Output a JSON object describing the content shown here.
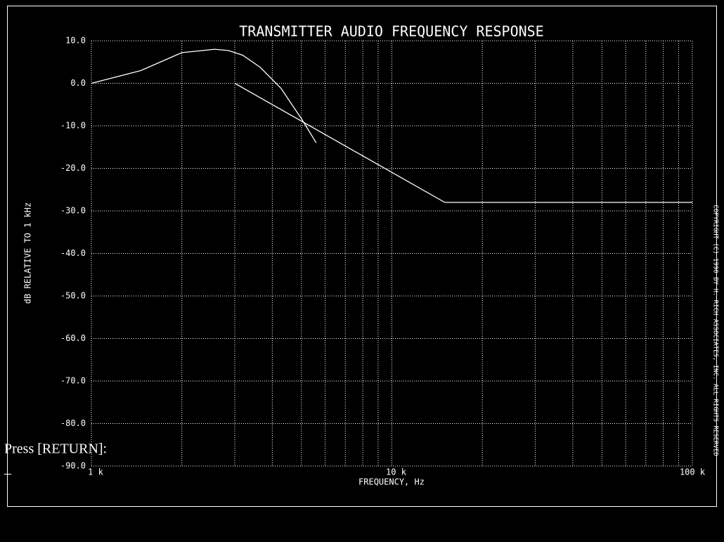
{
  "chart_data": {
    "type": "line",
    "title": "TRANSMITTER AUDIO FREQUENCY RESPONSE",
    "x_label": "FREQUENCY, Hz",
    "y_label": "dB RELATIVE TO 1 kHz",
    "log_x": true,
    "grid": true,
    "xlim": [
      1000,
      100000
    ],
    "xticks": [
      {
        "value": 1000,
        "label": "1 k"
      },
      {
        "value": 10000,
        "label": "10 k"
      },
      {
        "value": 100000,
        "label": "100 k"
      }
    ],
    "minor_xticks": [
      2000,
      3000,
      4000,
      5000,
      6000,
      7000,
      8000,
      9000,
      20000,
      30000,
      40000,
      50000,
      60000,
      70000,
      80000,
      90000
    ],
    "ylim": [
      -90,
      10
    ],
    "yticks": [
      {
        "value": 10,
        "label": "10.0"
      },
      {
        "value": 0,
        "label": "0.0"
      },
      {
        "value": -10,
        "label": "-10.0"
      },
      {
        "value": -20,
        "label": "-20.0"
      },
      {
        "value": -30,
        "label": "-30.0"
      },
      {
        "value": -40,
        "label": "-40.0"
      },
      {
        "value": -50,
        "label": "-50.0"
      },
      {
        "value": -60,
        "label": "-60.0"
      },
      {
        "value": -70,
        "label": "-70.0"
      },
      {
        "value": -80,
        "label": "-80.0"
      },
      {
        "value": -90,
        "label": "-90.0"
      }
    ],
    "series": [
      {
        "color": "#ffffff",
        "x": [
          1000,
          1460,
          2000,
          2570,
          2860,
          3190,
          3640,
          4280,
          5030,
          5600
        ],
        "values": [
          0,
          3,
          7.2,
          8,
          7.7,
          6.6,
          3.8,
          -1.2,
          -8.6,
          -14
        ]
      },
      {
        "color": "#ffffff",
        "x": [
          3000,
          15000,
          100000
        ],
        "values": [
          0,
          -28,
          -28
        ]
      }
    ]
  },
  "prompt": "Press [RETURN]:",
  "cursor": "_",
  "copyright": "COPYRIGHT (C) 1990 BY H. RICH ASSOCIATES, INC. ALL RIGHTS RESERVED"
}
